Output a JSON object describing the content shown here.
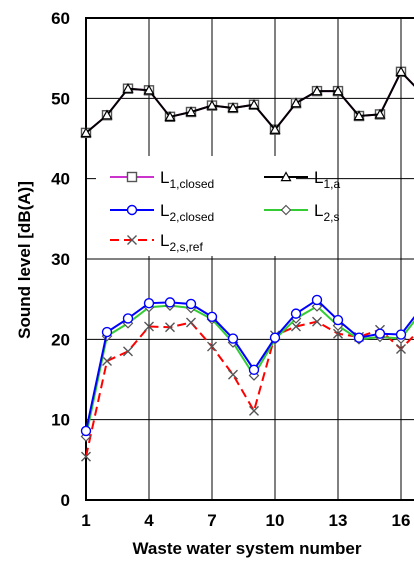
{
  "chart_data": {
    "type": "line",
    "title": "",
    "xlabel": "Waste water system number",
    "ylabel": "Sound level [dB(A)]",
    "xlim": [
      1,
      17
    ],
    "ylim": [
      0,
      60
    ],
    "xticks": [
      1,
      4,
      7,
      10,
      13,
      16
    ],
    "yticks": [
      0,
      10,
      20,
      30,
      40,
      50,
      60
    ],
    "grid": true,
    "legend_position": "center",
    "series": [
      {
        "name": "L1,closed",
        "label_main": "L",
        "label_sub": "1,closed",
        "color": "#cc33cc",
        "marker": "square",
        "dash": "solid",
        "x": [
          1,
          2,
          3,
          4,
          5,
          6,
          7,
          8,
          9,
          10,
          11,
          12,
          13,
          14,
          15,
          16,
          17
        ],
        "values": [
          45.7,
          47.9,
          51.2,
          51.0,
          47.7,
          48.3,
          49.1,
          48.8,
          49.2,
          46.1,
          49.4,
          50.9,
          50.9,
          47.8,
          48.0,
          53.3,
          50.6
        ]
      },
      {
        "name": "L1,a",
        "label_main": "L",
        "label_sub": "1,a",
        "color": "#000000",
        "marker": "triangle",
        "dash": "solid",
        "x": [
          1,
          2,
          3,
          4,
          5,
          6,
          7,
          8,
          9,
          10,
          11,
          12,
          13,
          14,
          15,
          16,
          17
        ],
        "values": [
          45.7,
          47.9,
          51.2,
          51.0,
          47.7,
          48.3,
          49.1,
          48.8,
          49.2,
          46.1,
          49.4,
          50.9,
          50.9,
          47.8,
          48.0,
          53.3,
          50.6
        ]
      },
      {
        "name": "L2,closed",
        "label_main": "L",
        "label_sub": "2,closed",
        "color": "#0000ff",
        "marker": "circle",
        "dash": "solid",
        "x": [
          1,
          2,
          3,
          4,
          5,
          6,
          7,
          8,
          9,
          10,
          11,
          12,
          13,
          14,
          15,
          16,
          17
        ],
        "values": [
          8.6,
          20.9,
          22.6,
          24.5,
          24.6,
          24.4,
          22.8,
          20.1,
          16.2,
          20.2,
          23.2,
          24.9,
          22.4,
          20.2,
          20.7,
          20.6,
          24.0
        ]
      },
      {
        "name": "L2,s",
        "label_main": "L",
        "label_sub": "2,s",
        "color": "#33cc33",
        "marker": "diamond",
        "dash": "solid",
        "x": [
          1,
          2,
          3,
          4,
          5,
          6,
          7,
          8,
          9,
          10,
          11,
          12,
          13,
          14,
          15,
          16,
          17
        ],
        "values": [
          7.9,
          20.4,
          22.0,
          24.0,
          24.2,
          23.9,
          22.5,
          19.6,
          15.5,
          20.0,
          22.6,
          24.1,
          21.7,
          20.0,
          20.3,
          20.1,
          23.5
        ]
      },
      {
        "name": "L2,s,ref",
        "label_main": "L",
        "label_sub": "2,s,ref",
        "color": "#ff0000",
        "marker": "x",
        "dash": "dash",
        "x": [
          1,
          2,
          3,
          4,
          5,
          6,
          7,
          8,
          9,
          10,
          11,
          12,
          13,
          14,
          15,
          16,
          17
        ],
        "values": [
          5.4,
          17.3,
          18.5,
          21.6,
          21.5,
          22.1,
          19.1,
          15.6,
          11.1,
          20.5,
          21.6,
          22.2,
          20.7,
          20.3,
          21.2,
          18.8,
          21.5
        ]
      }
    ]
  }
}
